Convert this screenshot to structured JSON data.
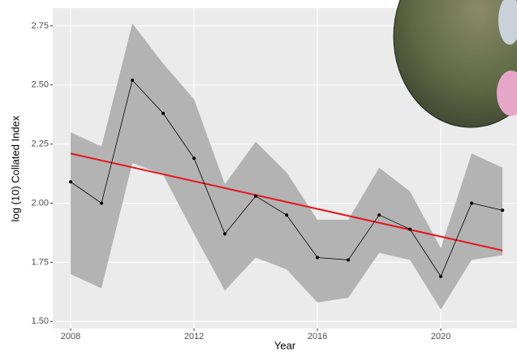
{
  "chart_data": {
    "type": "ribbon-line",
    "x_label": "Year",
    "y_label": "log (10) Collated Index",
    "x": [
      2008,
      2009,
      2010,
      2011,
      2012,
      2013,
      2014,
      2015,
      2016,
      2017,
      2018,
      2019,
      2020,
      2021,
      2022
    ],
    "values": [
      2.09,
      2.0,
      2.52,
      2.38,
      2.19,
      1.87,
      2.03,
      1.95,
      1.77,
      1.76,
      1.95,
      1.89,
      1.69,
      2.0,
      1.97
    ],
    "ci_upper": [
      2.3,
      2.24,
      2.76,
      2.59,
      2.44,
      2.08,
      2.26,
      2.13,
      1.93,
      1.93,
      2.15,
      2.05,
      1.81,
      2.21,
      2.15
    ],
    "ci_lower": [
      1.7,
      1.64,
      2.17,
      2.12,
      1.87,
      1.63,
      1.77,
      1.72,
      1.58,
      1.6,
      1.79,
      1.76,
      1.55,
      1.76,
      1.78
    ],
    "color": "#000000",
    "ribbon_color": "#b3b3b3",
    "trend_x": [
      2008,
      2022
    ],
    "trend_values": [
      2.21,
      1.8
    ],
    "trend_color": "#e8141c",
    "xlim": [
      2007.42,
      2022.47
    ],
    "ylim": [
      1.47,
      2.825
    ],
    "xticks": [
      2008,
      2012,
      2016,
      2020
    ],
    "yticks": [
      {
        "value": 1.5,
        "label": "1.50"
      },
      1.75,
      {
        "value": 2,
        "label": "2.00"
      },
      2.25,
      {
        "value": 2.5,
        "label": "2.50"
      },
      2.75
    ],
    "grid": true
  }
}
